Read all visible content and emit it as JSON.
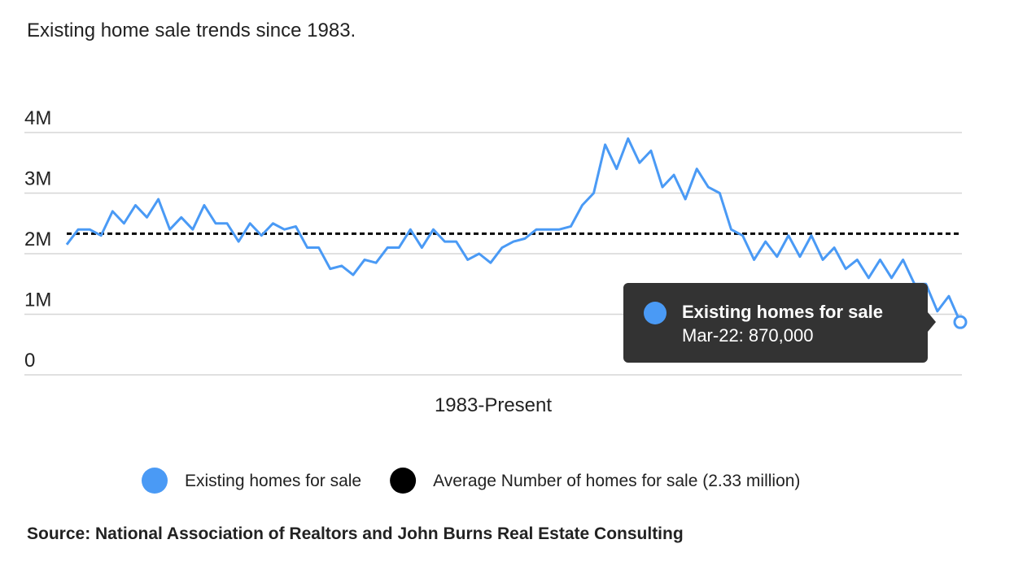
{
  "chart_data": {
    "type": "line",
    "title": "Existing home sale trends since 1983.",
    "x_label": "1983-Present",
    "source": "Source: National Association of Realtors and John Burns Real Estate Consulting",
    "categories": [
      null,
      null,
      null,
      null,
      null,
      null,
      null,
      null,
      null,
      null,
      null,
      null,
      null,
      null,
      null,
      null,
      null,
      null,
      null,
      null,
      null,
      null,
      null,
      null,
      null,
      null,
      null,
      null,
      null,
      null,
      null,
      null,
      null,
      null,
      null,
      null,
      null,
      null,
      null,
      null,
      null,
      null,
      null,
      null,
      null,
      null,
      null,
      null,
      null,
      null,
      null,
      null,
      null,
      null,
      null,
      null,
      null,
      null,
      null,
      null,
      null,
      null,
      null,
      null,
      null,
      null,
      null,
      null,
      null,
      null,
      null,
      null,
      null,
      null,
      null,
      null,
      null,
      null,
      "Mar-22"
    ],
    "series": [
      {
        "name": "Existing homes for sale",
        "color": "#4a9af5",
        "values": [
          2150000,
          2400000,
          2400000,
          2300000,
          2700000,
          2500000,
          2800000,
          2600000,
          2900000,
          2400000,
          2600000,
          2400000,
          2800000,
          2500000,
          2500000,
          2200000,
          2500000,
          2300000,
          2500000,
          2400000,
          2450000,
          2100000,
          2100000,
          1750000,
          1800000,
          1650000,
          1900000,
          1850000,
          2100000,
          2100000,
          2400000,
          2100000,
          2400000,
          2200000,
          2200000,
          1900000,
          2000000,
          1850000,
          2100000,
          2200000,
          2250000,
          2400000,
          2400000,
          2400000,
          2450000,
          2800000,
          3000000,
          3800000,
          3400000,
          3900000,
          3500000,
          3700000,
          3100000,
          3300000,
          2900000,
          3400000,
          3100000,
          3000000,
          2400000,
          2300000,
          1900000,
          2200000,
          1950000,
          2300000,
          1950000,
          2300000,
          1900000,
          2100000,
          1750000,
          1900000,
          1600000,
          1900000,
          1600000,
          1900000,
          1500000,
          1500000,
          1050000,
          1300000,
          870000
        ]
      }
    ],
    "reference_lines": [
      {
        "name": "Average Number of homes for sale (2.33 million)",
        "value": 2330000,
        "color": "#000000"
      }
    ],
    "tooltip": {
      "title": "Existing homes for sale",
      "text": "Mar-22: 870,000"
    },
    "ylim": [
      0,
      4000000
    ],
    "yticks": [
      {
        "value": 0,
        "label": "0"
      },
      {
        "value": 1000000,
        "label": "1M"
      },
      {
        "value": 2000000,
        "label": "2M"
      },
      {
        "value": 3000000,
        "label": "3M"
      },
      {
        "value": 4000000,
        "label": "4M"
      }
    ],
    "grid": true
  }
}
